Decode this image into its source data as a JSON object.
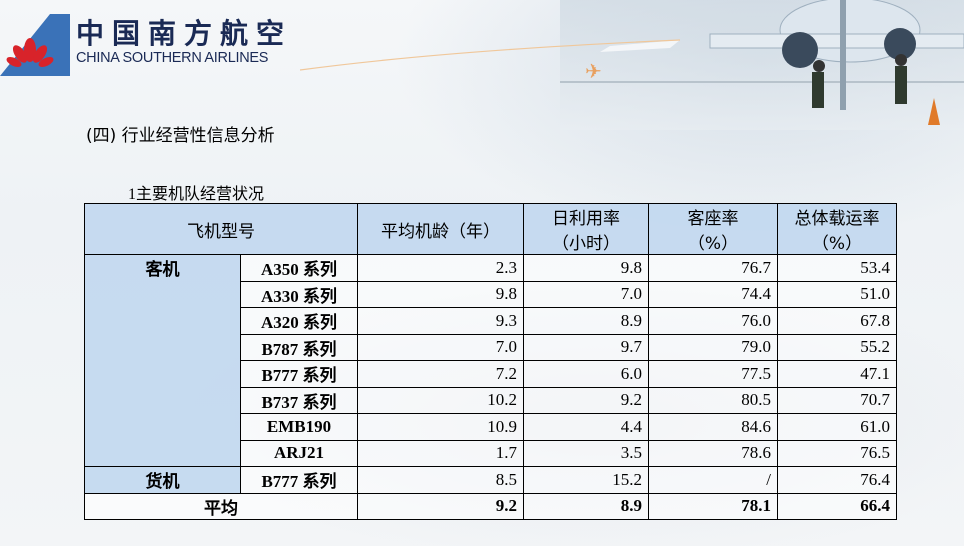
{
  "brand": {
    "name_cn": "中国南方航空",
    "name_en": "CHINA SOUTHERN AIRLINES",
    "color": "#1a2a55",
    "accent": "#3a72b8"
  },
  "section_title": "(四) 行业经营性信息分析",
  "subsection": {
    "number": "1",
    "title": "主要机队经营状况"
  },
  "table": {
    "headers": {
      "type": "飞机型号",
      "age": "平均机龄（年）",
      "util_line1": "日利用率",
      "util_line2": "（小时）",
      "load_line1": "客座率",
      "load_line2": "（%）",
      "total_line1": "总体载运率",
      "total_line2": "（%）"
    },
    "groups": {
      "passenger": "客机",
      "cargo": "货机"
    },
    "rows": [
      {
        "model": "A350",
        "suffix": "系列",
        "age": "2.3",
        "util": "9.8",
        "load": "76.7",
        "total": "53.4"
      },
      {
        "model": "A330",
        "suffix": "系列",
        "age": "9.8",
        "util": "7.0",
        "load": "74.4",
        "total": "51.0"
      },
      {
        "model": "A320",
        "suffix": "系列",
        "age": "9.3",
        "util": "8.9",
        "load": "76.0",
        "total": "67.8"
      },
      {
        "model": "B787",
        "suffix": "系列",
        "age": "7.0",
        "util": "9.7",
        "load": "79.0",
        "total": "55.2"
      },
      {
        "model": "B777",
        "suffix": "系列",
        "age": "7.2",
        "util": "6.0",
        "load": "77.5",
        "total": "47.1"
      },
      {
        "model": "B737",
        "suffix": "系列",
        "age": "10.2",
        "util": "9.2",
        "load": "80.5",
        "total": "70.7"
      },
      {
        "model": "EMB190",
        "suffix": "",
        "age": "10.9",
        "util": "4.4",
        "load": "84.6",
        "total": "61.0"
      },
      {
        "model": "ARJ21",
        "suffix": "",
        "age": "1.7",
        "util": "3.5",
        "load": "78.6",
        "total": "76.5"
      }
    ],
    "cargo_row": {
      "model": "B777",
      "suffix": "系列",
      "age": "8.5",
      "util": "15.2",
      "load": "/",
      "total": "76.4"
    },
    "average": {
      "label": "平均",
      "age": "9.2",
      "util": "8.9",
      "load": "78.1",
      "total": "66.4"
    }
  }
}
